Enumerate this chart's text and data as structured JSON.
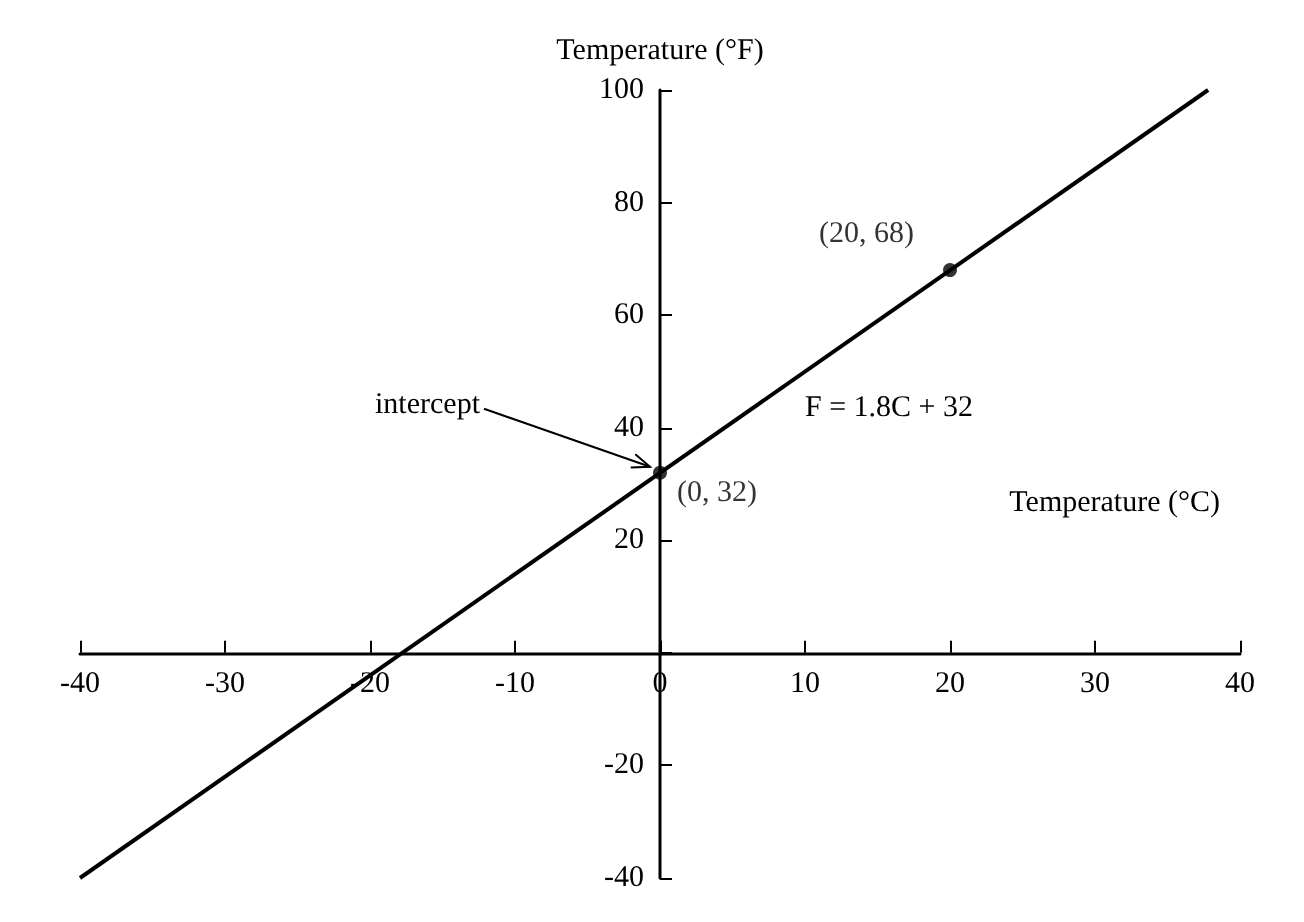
{
  "chart_data": {
    "type": "line",
    "xlabel": "Temperature (°C)",
    "ylabel": "Temperature (°F)",
    "series": [
      {
        "type": "line",
        "color": "#000000",
        "x": [
          -40,
          37.8
        ],
        "values": [
          -40,
          100
        ],
        "marker": "none"
      },
      {
        "type": "scatter",
        "color": "#000000",
        "x": [
          0,
          20
        ],
        "values": [
          32,
          68
        ],
        "marker": "circle",
        "value_labels": [
          "(0, 32)",
          "(20, 68)"
        ]
      }
    ],
    "annotations": [
      {
        "text": "intercept",
        "x": 0,
        "y": 32
      },
      "F = 1.8C + 32"
    ],
    "xlim": [
      -40,
      40
    ],
    "xticks": [
      -40,
      -30,
      -20,
      -10,
      0,
      10,
      20,
      30,
      40
    ],
    "ylim": [
      -40,
      100
    ],
    "yticks": [
      -40,
      -20,
      {
        "value": 0,
        "label": null
      },
      20,
      40,
      60,
      80,
      100
    ],
    "grid": false
  }
}
